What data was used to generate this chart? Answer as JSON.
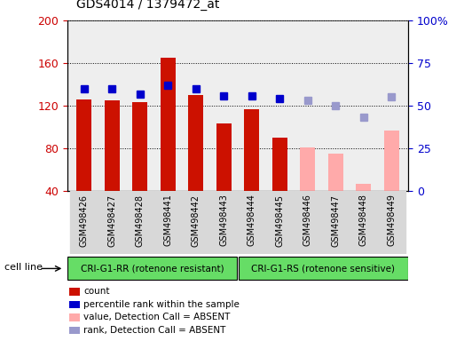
{
  "title": "GDS4014 / 1379472_at",
  "samples": [
    "GSM498426",
    "GSM498427",
    "GSM498428",
    "GSM498441",
    "GSM498442",
    "GSM498443",
    "GSM498444",
    "GSM498445",
    "GSM498446",
    "GSM498447",
    "GSM498448",
    "GSM498449"
  ],
  "count_present": [
    126,
    125,
    123,
    165,
    130,
    103,
    117,
    90,
    null,
    null,
    null,
    null
  ],
  "count_absent": [
    null,
    null,
    null,
    null,
    null,
    null,
    null,
    null,
    81,
    75,
    47,
    97
  ],
  "rank_present": [
    60,
    60,
    57,
    62,
    60,
    56,
    56,
    54,
    null,
    null,
    null,
    null
  ],
  "rank_absent": [
    null,
    null,
    null,
    null,
    null,
    null,
    null,
    null,
    53,
    50,
    43,
    55
  ],
  "ylim_left": [
    40,
    200
  ],
  "ylim_right": [
    0,
    100
  ],
  "left_ticks": [
    40,
    80,
    120,
    160,
    200
  ],
  "right_ticks": [
    0,
    25,
    50,
    75,
    100
  ],
  "right_tick_labels": [
    "0",
    "25",
    "50",
    "75",
    "100%"
  ],
  "bar_width": 0.55,
  "present_bar_color": "#cc1100",
  "absent_bar_color": "#ffaaaa",
  "present_rank_color": "#0000cc",
  "absent_rank_color": "#9999cc",
  "ylabel_left_color": "#cc0000",
  "ylabel_right_color": "#0000cc",
  "group1_label": "CRI-G1-RR (rotenone resistant)",
  "group2_label": "CRI-G1-RS (rotenone sensitive)",
  "group_color": "#66dd66",
  "cell_line_label": "cell line",
  "legend_items": [
    {
      "label": "count",
      "color": "#cc1100"
    },
    {
      "label": "percentile rank within the sample",
      "color": "#0000cc"
    },
    {
      "label": "value, Detection Call = ABSENT",
      "color": "#ffaaaa"
    },
    {
      "label": "rank, Detection Call = ABSENT",
      "color": "#9999cc"
    }
  ]
}
